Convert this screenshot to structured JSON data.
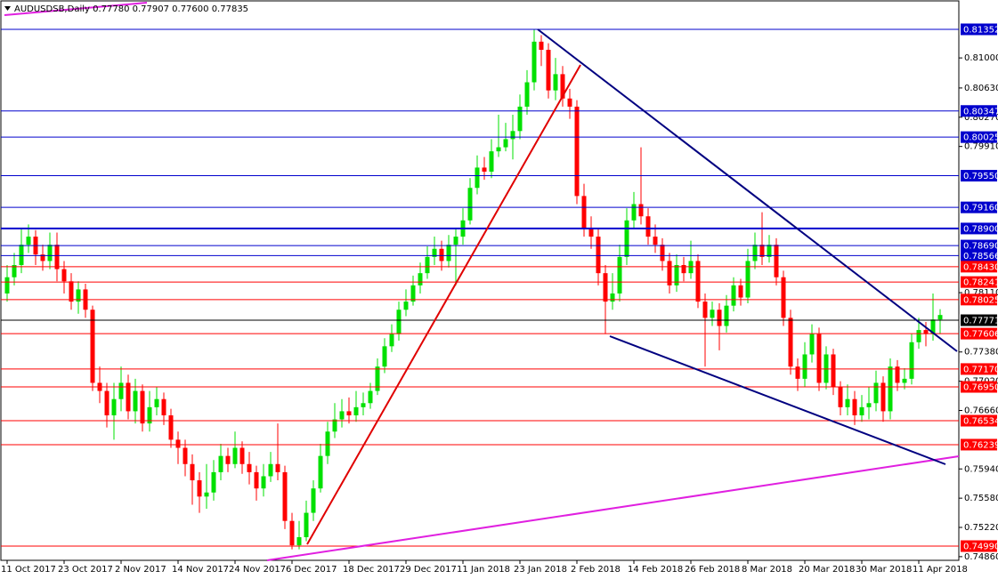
{
  "chart_data": {
    "type": "candlestick",
    "title": "AUDUSDSB,Daily  0.77780 0.77907 0.77600 0.77835",
    "up_color": "#00e000",
    "down_color": "#ff0000",
    "ylim": [
      0.74815,
      0.81713
    ],
    "yticks": [
      {
        "value": 0.81,
        "label": "0.81000"
      },
      {
        "value": 0.8063,
        "label": "0.80630"
      },
      {
        "value": 0.8027,
        "label": "0.80270"
      },
      {
        "value": 0.7991,
        "label": "0.79910"
      },
      {
        "value": 0.7811,
        "label": "0.78110"
      },
      {
        "value": 0.7738,
        "label": "0.77380"
      },
      {
        "value": 0.7702,
        "label": "0.77020"
      },
      {
        "value": 0.7666,
        "label": "0.76660"
      },
      {
        "value": 0.7594,
        "label": "0.75940"
      },
      {
        "value": 0.7558,
        "label": "0.75580"
      },
      {
        "value": 0.7522,
        "label": "0.75220"
      },
      {
        "value": 0.7486,
        "label": "0.74860"
      }
    ],
    "levels": [
      {
        "value": 0.81352,
        "color": "#0000cd"
      },
      {
        "value": 0.80347,
        "color": "#0000cd"
      },
      {
        "value": 0.80025,
        "color": "#0000cd"
      },
      {
        "value": 0.7955,
        "label": "0.79550",
        "color": "#0000cd"
      },
      {
        "value": 0.7916,
        "label": "0.79160",
        "color": "#0000cd"
      },
      {
        "value": 0.789,
        "label": "0.78900",
        "color": "#0000cd"
      },
      {
        "value": 0.7869,
        "label": "0.78690",
        "color": "#0000cd"
      },
      {
        "value": 0.78566,
        "color": "#0000cd"
      },
      {
        "value": 0.7843,
        "label": "0.78430",
        "color": "#ff0000"
      },
      {
        "value": 0.78241,
        "color": "#ff0000"
      },
      {
        "value": 0.78025,
        "color": "#ff0000"
      },
      {
        "value": 0.77771,
        "color": "#000000"
      },
      {
        "value": 0.77606,
        "color": "#ff0000"
      },
      {
        "value": 0.7717,
        "label": "0.77170",
        "color": "#ff0000"
      },
      {
        "value": 0.7695,
        "label": "0.76950",
        "color": "#ff0000"
      },
      {
        "value": 0.76534,
        "color": "#ff0000"
      },
      {
        "value": 0.76239,
        "color": "#ff0000"
      },
      {
        "value": 0.7499,
        "label": "0.74990",
        "color": "#ff0000"
      }
    ],
    "categories": [
      "11 Oct 2017",
      null,
      null,
      null,
      null,
      null,
      null,
      null,
      "23 Oct 2017",
      null,
      null,
      null,
      null,
      null,
      null,
      null,
      "2 Nov 2017",
      null,
      null,
      null,
      null,
      null,
      null,
      null,
      "14 Nov 2017",
      null,
      null,
      null,
      null,
      null,
      null,
      null,
      "24 Nov 2017",
      null,
      null,
      null,
      null,
      null,
      null,
      null,
      "6 Dec 2017",
      null,
      null,
      null,
      null,
      null,
      null,
      null,
      "18 Dec 2017",
      null,
      null,
      null,
      null,
      null,
      null,
      null,
      "29 Dec 2017",
      null,
      null,
      null,
      null,
      null,
      null,
      null,
      "11 Jan 2018",
      null,
      null,
      null,
      null,
      null,
      null,
      null,
      "23 Jan 2018",
      null,
      null,
      null,
      null,
      null,
      null,
      null,
      "2 Feb 2018",
      null,
      null,
      null,
      null,
      null,
      null,
      null,
      "14 Feb 2018",
      null,
      null,
      null,
      null,
      null,
      null,
      null,
      "26 Feb 2018",
      null,
      null,
      null,
      null,
      null,
      null,
      null,
      "8 Mar 2018",
      null,
      null,
      null,
      null,
      null,
      null,
      null,
      "20 Mar 2018",
      null,
      null,
      null,
      null,
      null,
      null,
      null,
      "30 Mar 2018",
      null,
      null,
      null,
      null,
      null,
      null,
      null,
      "11 Apr 2018",
      null,
      null,
      null
    ],
    "open": [
      0.781,
      0.783,
      0.7845,
      0.787,
      0.788,
      0.7858,
      0.785,
      0.787,
      0.784,
      0.7825,
      0.78,
      0.7815,
      0.779,
      0.77,
      0.769,
      0.766,
      0.768,
      0.77,
      0.7665,
      0.769,
      0.765,
      0.767,
      0.768,
      0.766,
      0.763,
      0.762,
      0.76,
      0.758,
      0.756,
      0.7565,
      0.759,
      0.761,
      0.76,
      0.762,
      0.76,
      0.759,
      0.757,
      0.7585,
      0.76,
      0.759,
      0.753,
      0.75,
      0.751,
      0.754,
      0.757,
      0.761,
      0.764,
      0.7655,
      0.7665,
      0.766,
      0.767,
      0.7675,
      0.769,
      0.772,
      0.7745,
      0.776,
      0.779,
      0.78,
      0.782,
      0.7835,
      0.7855,
      0.7865,
      0.785,
      0.787,
      0.788,
      0.79,
      0.794,
      0.7965,
      0.796,
      0.7985,
      0.799,
      0.8,
      0.801,
      0.804,
      0.807,
      0.812,
      0.811,
      0.806,
      0.808,
      0.805,
      0.804,
      0.793,
      0.789,
      0.788,
      0.7835,
      0.78,
      0.781,
      0.7855,
      0.79,
      0.792,
      0.7905,
      0.788,
      0.787,
      0.785,
      0.782,
      0.7845,
      0.7835,
      0.785,
      0.78,
      0.778,
      0.779,
      0.777,
      0.7795,
      0.782,
      0.7805,
      0.785,
      0.787,
      0.7855,
      0.787,
      0.783,
      0.778,
      0.772,
      0.7705,
      0.7735,
      0.776,
      0.77,
      0.7735,
      0.7695,
      0.767,
      0.768,
      0.766,
      0.767,
      0.7675,
      0.77,
      0.7665,
      0.772,
      0.77,
      0.7705,
      0.775,
      0.7765,
      0.776,
      0.7778
    ],
    "high": [
      0.7845,
      0.786,
      0.789,
      0.7895,
      0.7888,
      0.787,
      0.7885,
      0.7885,
      0.785,
      0.7835,
      0.7825,
      0.7822,
      0.7795,
      0.772,
      0.77,
      0.77,
      0.772,
      0.771,
      0.7705,
      0.7698,
      0.769,
      0.7695,
      0.7688,
      0.7668,
      0.764,
      0.763,
      0.7612,
      0.759,
      0.76,
      0.7605,
      0.7625,
      0.762,
      0.764,
      0.7628,
      0.7615,
      0.7598,
      0.76,
      0.7615,
      0.765,
      0.7598,
      0.754,
      0.753,
      0.7555,
      0.758,
      0.7625,
      0.7652,
      0.7675,
      0.768,
      0.7682,
      0.769,
      0.7688,
      0.77,
      0.773,
      0.7755,
      0.7772,
      0.78,
      0.7815,
      0.7832,
      0.7848,
      0.7868,
      0.788,
      0.7875,
      0.7882,
      0.789,
      0.7915,
      0.7952,
      0.798,
      0.7978,
      0.8,
      0.803,
      0.802,
      0.803,
      0.8055,
      0.8085,
      0.8135,
      0.8128,
      0.8118,
      0.81,
      0.809,
      0.8062,
      0.8048,
      0.7945,
      0.7905,
      0.789,
      0.7845,
      0.7835,
      0.787,
      0.7915,
      0.7935,
      0.799,
      0.7915,
      0.7895,
      0.7878,
      0.786,
      0.7858,
      0.7855,
      0.7875,
      0.7858,
      0.781,
      0.78,
      0.7798,
      0.7808,
      0.783,
      0.7828,
      0.7865,
      0.7885,
      0.791,
      0.7882,
      0.7878,
      0.7838,
      0.779,
      0.773,
      0.775,
      0.7772,
      0.7768,
      0.7745,
      0.7742,
      0.7702,
      0.7698,
      0.769,
      0.7685,
      0.7695,
      0.7715,
      0.7708,
      0.773,
      0.7728,
      0.7718,
      0.776,
      0.778,
      0.7775,
      0.781,
      0.77907
    ],
    "low": [
      0.78,
      0.782,
      0.7835,
      0.786,
      0.7845,
      0.7838,
      0.784,
      0.7825,
      0.781,
      0.779,
      0.7785,
      0.778,
      0.769,
      0.7675,
      0.7645,
      0.763,
      0.7665,
      0.7655,
      0.765,
      0.764,
      0.764,
      0.766,
      0.7648,
      0.762,
      0.76,
      0.7585,
      0.755,
      0.754,
      0.7545,
      0.7555,
      0.758,
      0.759,
      0.7595,
      0.7588,
      0.7575,
      0.7555,
      0.756,
      0.7578,
      0.758,
      0.752,
      0.7495,
      0.7495,
      0.7505,
      0.753,
      0.7565,
      0.76,
      0.7632,
      0.7645,
      0.765,
      0.7652,
      0.766,
      0.7668,
      0.7685,
      0.7712,
      0.7738,
      0.7752,
      0.7782,
      0.7795,
      0.781,
      0.7828,
      0.7845,
      0.7838,
      0.7842,
      0.782,
      0.787,
      0.7895,
      0.7932,
      0.795,
      0.7952,
      0.7978,
      0.7985,
      0.7975,
      0.8,
      0.803,
      0.806,
      0.809,
      0.805,
      0.8048,
      0.804,
      0.8025,
      0.792,
      0.788,
      0.7865,
      0.782,
      0.776,
      0.779,
      0.78,
      0.7845,
      0.789,
      0.7895,
      0.787,
      0.786,
      0.7838,
      0.781,
      0.7812,
      0.7825,
      0.7828,
      0.7792,
      0.772,
      0.777,
      0.774,
      0.7762,
      0.7788,
      0.7795,
      0.7798,
      0.784,
      0.7845,
      0.7848,
      0.782,
      0.777,
      0.771,
      0.769,
      0.7695,
      0.7725,
      0.769,
      0.7692,
      0.7685,
      0.766,
      0.766,
      0.7648,
      0.7652,
      0.7655,
      0.7665,
      0.7652,
      0.7655,
      0.769,
      0.7692,
      0.7698,
      0.7742,
      0.7745,
      0.7752,
      0.776
    ],
    "close": [
      0.783,
      0.7845,
      0.787,
      0.788,
      0.7858,
      0.785,
      0.787,
      0.784,
      0.7825,
      0.78,
      0.7815,
      0.779,
      0.77,
      0.769,
      0.766,
      0.768,
      0.77,
      0.7665,
      0.769,
      0.765,
      0.767,
      0.768,
      0.766,
      0.763,
      0.762,
      0.76,
      0.758,
      0.756,
      0.7565,
      0.759,
      0.761,
      0.76,
      0.762,
      0.76,
      0.759,
      0.757,
      0.7585,
      0.76,
      0.759,
      0.753,
      0.75,
      0.751,
      0.754,
      0.757,
      0.761,
      0.764,
      0.7655,
      0.7665,
      0.766,
      0.767,
      0.7675,
      0.769,
      0.772,
      0.7745,
      0.776,
      0.779,
      0.78,
      0.782,
      0.7835,
      0.7855,
      0.7865,
      0.785,
      0.787,
      0.788,
      0.79,
      0.794,
      0.7965,
      0.796,
      0.7985,
      0.799,
      0.8,
      0.801,
      0.804,
      0.807,
      0.812,
      0.811,
      0.806,
      0.808,
      0.805,
      0.804,
      0.793,
      0.789,
      0.788,
      0.7835,
      0.78,
      0.781,
      0.7855,
      0.79,
      0.792,
      0.7905,
      0.788,
      0.787,
      0.785,
      0.782,
      0.7845,
      0.7835,
      0.785,
      0.78,
      0.778,
      0.779,
      0.777,
      0.7795,
      0.782,
      0.7805,
      0.785,
      0.787,
      0.7855,
      0.787,
      0.783,
      0.778,
      0.772,
      0.7705,
      0.7735,
      0.776,
      0.77,
      0.7735,
      0.7695,
      0.767,
      0.768,
      0.766,
      0.767,
      0.7675,
      0.77,
      0.7665,
      0.772,
      0.77,
      0.7705,
      0.775,
      0.7765,
      0.776,
      0.7778,
      0.77835
    ]
  }
}
